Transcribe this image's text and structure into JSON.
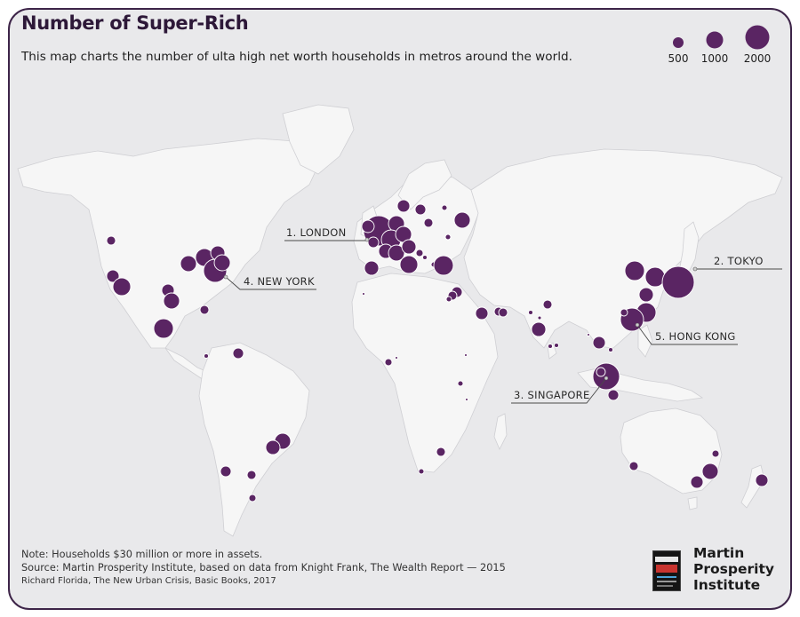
{
  "title": "Number of Super-Rich",
  "subtitle": "This map charts the number of ulta high net worth households in metros around the world.",
  "legend": {
    "items": [
      {
        "label": "500",
        "value": 500
      },
      {
        "label": "1000",
        "value": 1000
      },
      {
        "label": "2000",
        "value": 2000
      }
    ]
  },
  "callouts": {
    "london": "1. LONDON",
    "tokyo": "2. TOKYO",
    "singapore": "3. SINGAPORE",
    "new_york": "4. NEW YORK",
    "hong_kong": "5. HONG KONG"
  },
  "notes": {
    "note": "Note: Households $30 million or more in assets.",
    "source": "Source: Martin Prosperity Institute, based on data from Knight Frank, The Wealth Report — 2015",
    "credit": "Richard Florida, The New Urban Crisis, Basic Books, 2017"
  },
  "logo": {
    "line1": "Martin",
    "line2": "Prosperity",
    "line3": "Institute"
  },
  "colors": {
    "bubble": "#5a2563",
    "bubble_stroke": "#ffffff",
    "land": "#f6f6f6",
    "ocean": "#e9e9eb",
    "frame": "#3d2448"
  }
}
